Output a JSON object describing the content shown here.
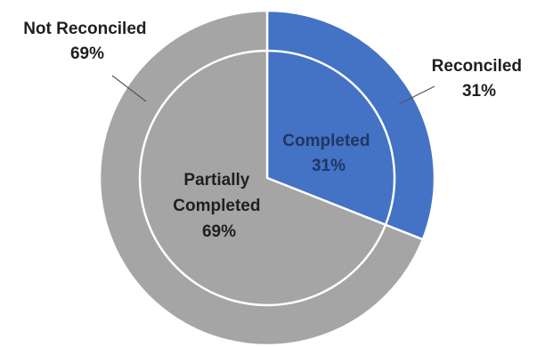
{
  "chart_data": {
    "type": "pie",
    "title": "",
    "rings": [
      {
        "ring": "outer",
        "slices": [
          {
            "label": "Reconciled",
            "value": 31,
            "display": "31%",
            "color": "#4472C4"
          },
          {
            "label": "Not Reconciled",
            "value": 69,
            "display": "69%",
            "color": "#A5A5A5"
          }
        ]
      },
      {
        "ring": "inner",
        "slices": [
          {
            "label": "Completed",
            "value": 31,
            "display": "31%",
            "color": "#4472C4"
          },
          {
            "label": "Partially Completed",
            "value": 69,
            "display": "69%",
            "color": "#A5A5A5"
          }
        ]
      }
    ],
    "legend": "none",
    "grid": false
  },
  "labels": {
    "not_reconciled": {
      "line1": "Not Reconciled",
      "line2": "69%"
    },
    "reconciled": {
      "line1": "Reconciled",
      "line2": "31%"
    },
    "completed": {
      "line1": "Completed",
      "line2": "31%"
    },
    "partially_completed": {
      "line1": "Partially",
      "line2": "Completed",
      "line3": "69%"
    }
  },
  "colors": {
    "blue": "#4472C4",
    "gray": "#A5A5A5",
    "text_dark": "#1f1f1f",
    "text_on_blue": "#1f3763",
    "divider": "#ffffff"
  }
}
